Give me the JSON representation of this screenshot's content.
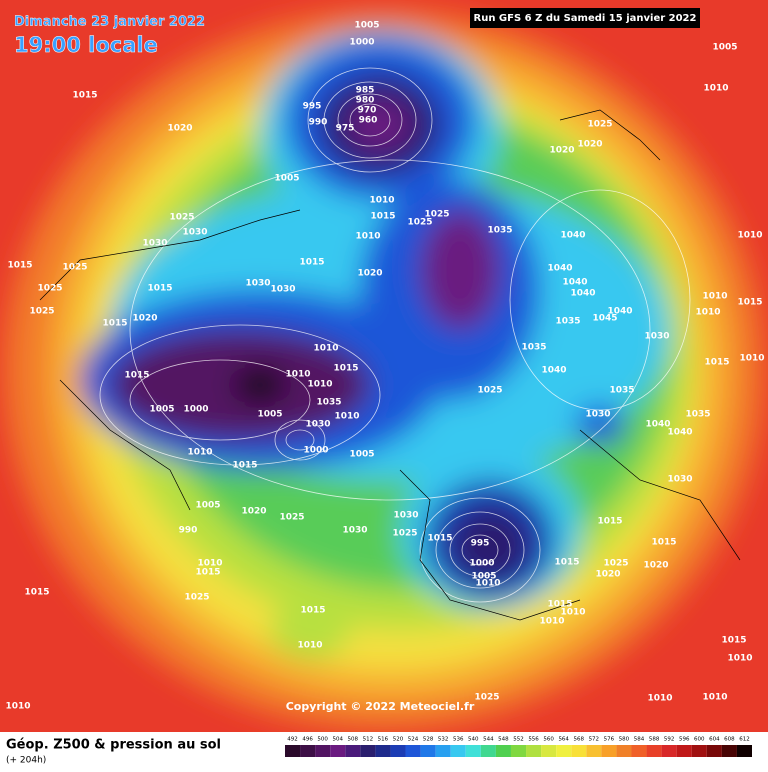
{
  "header": {
    "date": "Dimanche 23 janvier 2022",
    "time": "19:00 locale",
    "run": "Run GFS 6 Z du Samedi 15 janvier 2022"
  },
  "footer": {
    "title": "Géop. Z500 & pression au sol",
    "lead": "(+ 204h)",
    "copyright": "Copyright © 2022 Meteociel.fr"
  },
  "legend": {
    "values": [
      492,
      496,
      500,
      504,
      508,
      512,
      516,
      520,
      524,
      528,
      532,
      536,
      540,
      544,
      548,
      552,
      556,
      560,
      564,
      568,
      572,
      576,
      580,
      584,
      588,
      592,
      596,
      600,
      604,
      608,
      612
    ],
    "colors": [
      "#2b0a2b",
      "#3d0f46",
      "#521462",
      "#6a1a80",
      "#4a1a7a",
      "#2a1e6e",
      "#1e2a8c",
      "#1c3cb4",
      "#1e56d8",
      "#2078e8",
      "#28a0f0",
      "#38c8f0",
      "#40e0d8",
      "#40d890",
      "#50d050",
      "#80d840",
      "#b0e040",
      "#d8e840",
      "#f0f040",
      "#f8e038",
      "#f8c030",
      "#f8a028",
      "#f08028",
      "#f06028",
      "#e84028",
      "#d82828",
      "#c01818",
      "#a01010",
      "#780808",
      "#480404",
      "#100000"
    ]
  },
  "isobar_labels": [
    1005,
    1000,
    1005,
    1010,
    1015,
    1020,
    985,
    980,
    995,
    970,
    990,
    960,
    975,
    1025,
    1020,
    1020,
    1005,
    1010,
    1015,
    1025,
    1025,
    1035,
    1010,
    1025,
    1030,
    1030,
    1015,
    1025,
    1015,
    1020,
    1040,
    1040,
    1040,
    1040,
    1010,
    1025,
    1030,
    1030,
    1015,
    1010,
    1015,
    1025,
    1015,
    1020,
    1035,
    1040,
    1045,
    1010,
    1030,
    1010,
    1035,
    1015,
    1010,
    1015,
    1015,
    1040,
    1010,
    1010,
    1025,
    1035,
    1035,
    1005,
    1000,
    1005,
    1010,
    1030,
    1030,
    1040,
    1035,
    1040,
    1010,
    1000,
    1005,
    1015,
    1030,
    1005,
    1020,
    1025,
    1030,
    1030,
    1015,
    990,
    995,
    1015,
    1025,
    1000,
    1005,
    1010,
    1015,
    1015,
    1020,
    1025,
    1020,
    1010,
    1015,
    1015,
    1025,
    1015,
    1015,
    1010,
    1010,
    1010,
    1015,
    1010,
    1025,
    1010,
    1010,
    1010
  ]
}
